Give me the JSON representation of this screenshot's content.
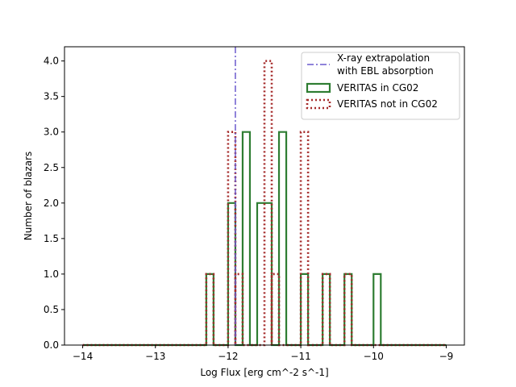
{
  "chart_data": {
    "type": "histogram",
    "xlabel": "Log Flux [erg cm^-2 s^-1]",
    "ylabel": "Number of blazars",
    "xlim": [
      -14.25,
      -8.75
    ],
    "ylim": [
      0,
      4.2
    ],
    "xticks": [
      -14,
      -13,
      -12,
      -11,
      -10,
      -9
    ],
    "yticks": [
      0.0,
      0.5,
      1.0,
      1.5,
      2.0,
      2.5,
      3.0,
      3.5,
      4.0
    ],
    "grid": false,
    "legend_position": "top-right",
    "bin_start": -14,
    "bin_width": 0.1,
    "series": [
      {
        "name": "VERITAS in CG02",
        "style": "solid",
        "color": "#2e7d32",
        "x_range": [
          -14,
          -9
        ],
        "bars": [
          {
            "x0": -12.3,
            "x1": -12.2,
            "count": 1
          },
          {
            "x0": -12.0,
            "x1": -11.9,
            "count": 2
          },
          {
            "x0": -11.8,
            "x1": -11.7,
            "count": 3
          },
          {
            "x0": -11.6,
            "x1": -11.4,
            "count": 2
          },
          {
            "x0": -11.3,
            "x1": -11.2,
            "count": 3
          },
          {
            "x0": -11.0,
            "x1": -10.9,
            "count": 1
          },
          {
            "x0": -10.7,
            "x1": -10.6,
            "count": 1
          },
          {
            "x0": -10.4,
            "x1": -10.3,
            "count": 1
          },
          {
            "x0": -10.0,
            "x1": -9.9,
            "count": 1
          }
        ]
      },
      {
        "name": "VERITAS not in CG02",
        "style": "dotted",
        "color": "#a52a2a",
        "x_range": [
          -14,
          -9
        ],
        "bars": [
          {
            "x0": -12.3,
            "x1": -12.2,
            "count": 1
          },
          {
            "x0": -12.0,
            "x1": -11.9,
            "count": 3
          },
          {
            "x0": -11.9,
            "x1": -11.8,
            "count": 1
          },
          {
            "x0": -11.5,
            "x1": -11.4,
            "count": 4
          },
          {
            "x0": -11.4,
            "x1": -11.3,
            "count": 1
          },
          {
            "x0": -11.0,
            "x1": -10.9,
            "count": 3
          },
          {
            "x0": -10.7,
            "x1": -10.6,
            "count": 1
          },
          {
            "x0": -10.4,
            "x1": -10.3,
            "count": 1
          }
        ]
      }
    ],
    "vline": {
      "name": "X-ray extrapolation with EBL absorption",
      "x": -11.9,
      "style": "dashdot",
      "color": "#6a5acd"
    },
    "legend": [
      {
        "line1": "X-ray extrapolation",
        "line2": "with EBL absorption",
        "style": "dashdot",
        "color": "#6a5acd"
      },
      {
        "line1": "VERITAS in CG02",
        "style": "solid",
        "color": "#2e7d32"
      },
      {
        "line1": "VERITAS not in CG02",
        "style": "dotted",
        "color": "#a52a2a"
      }
    ]
  }
}
